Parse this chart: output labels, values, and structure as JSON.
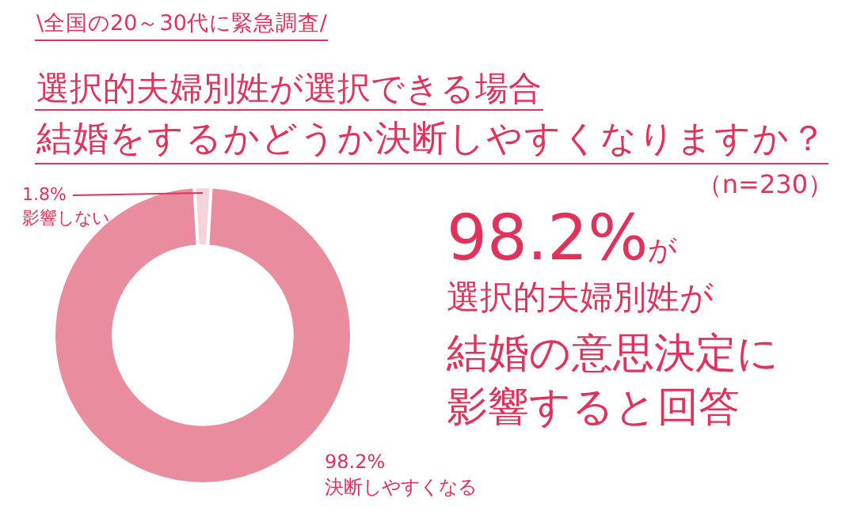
{
  "chart_data": {
    "type": "donut",
    "title": "選択的夫婦別姓が選択できる場合",
    "subtitle": "結婚をするかどうか決断しやすくなりますか？",
    "categories": [
      "影響しない",
      "決断しやすくなる"
    ],
    "values": [
      1.8,
      98.2
    ],
    "colors": [
      "#f6d3da",
      "#e98c9d"
    ],
    "value_labels": [
      "1.8%",
      "98.2%"
    ],
    "legend": false,
    "annotations": [
      "\\全国の20～30代に緊急調査/",
      "（n=230）",
      "98.2%が",
      "選択的夫婦別姓が",
      "結婚の意思決定に",
      "影響すると回答"
    ]
  }
}
